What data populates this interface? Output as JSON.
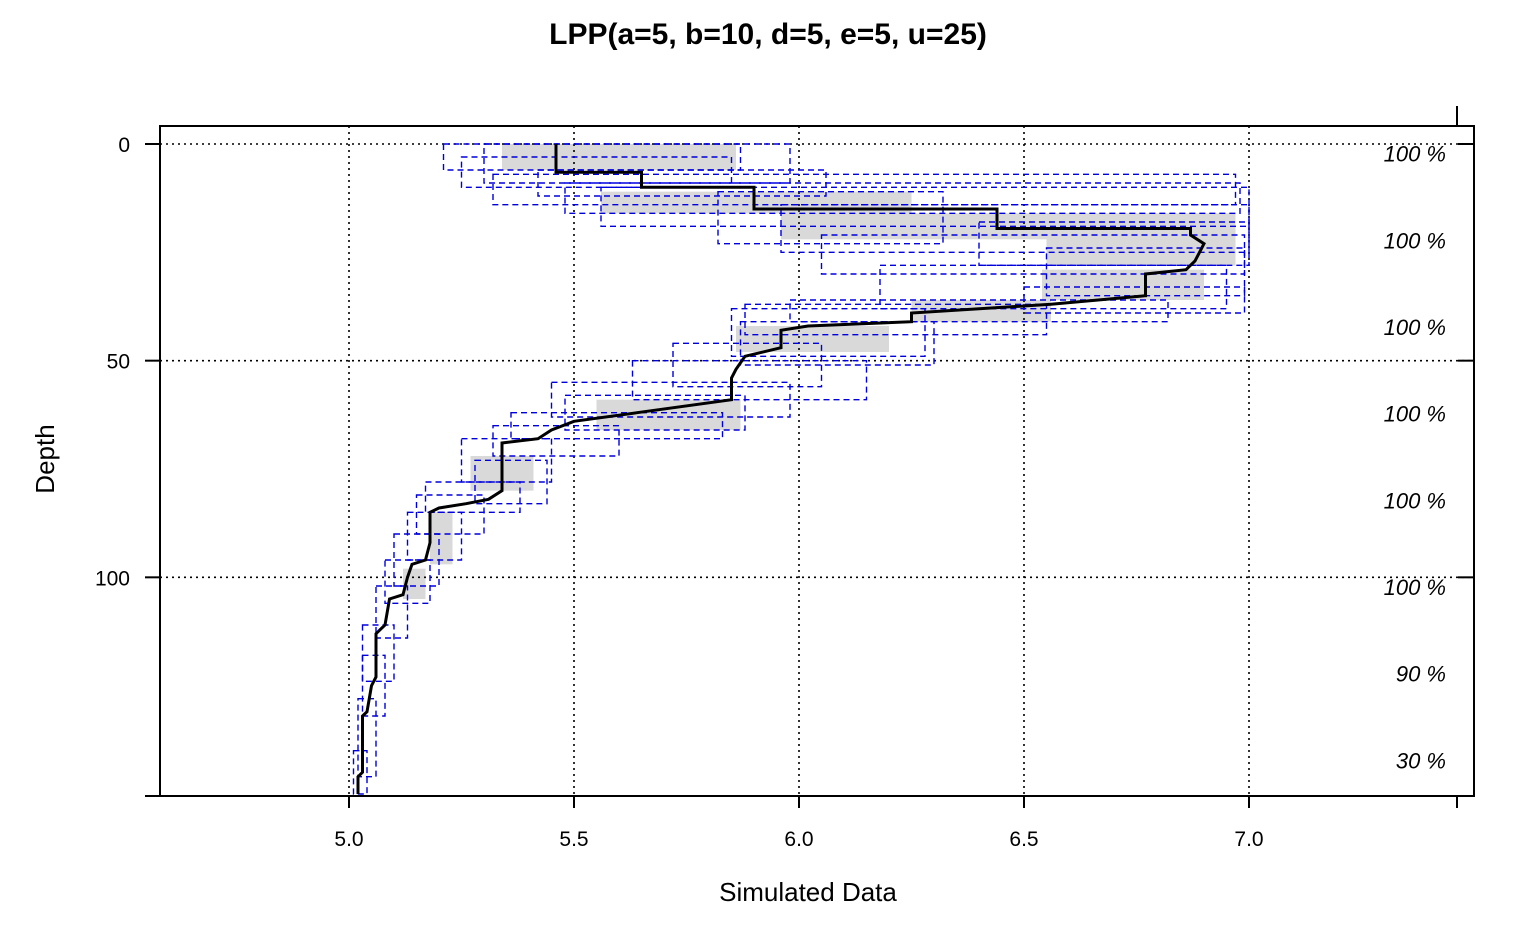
{
  "chart_data": {
    "type": "line",
    "title": "LPP(a=5, b=10, d=5, e=5, u=25)",
    "xlabel": "Simulated Data",
    "ylabel": "Depth",
    "xlim": [
      4.58,
      7.5
    ],
    "ylim": [
      0,
      150
    ],
    "y_reversed": true,
    "grid": true,
    "x_ticks": [
      5.0,
      5.5,
      6.0,
      6.5,
      7.0
    ],
    "x_tick_labels": [
      "5.0",
      "5.5",
      "6.0",
      "6.5",
      "7.0"
    ],
    "y_ticks": [
      0,
      50,
      100
    ],
    "y_tick_labels": [
      "0",
      "50",
      "100"
    ],
    "coverage_labels": [
      {
        "depth": 2,
        "label": "100 %"
      },
      {
        "depth": 22,
        "label": "100 %"
      },
      {
        "depth": 42,
        "label": "100 %"
      },
      {
        "depth": 62,
        "label": "100 %"
      },
      {
        "depth": 82,
        "label": "100 %"
      },
      {
        "depth": 102,
        "label": "100 %"
      },
      {
        "depth": 122,
        "label": "90 %"
      },
      {
        "depth": 142,
        "label": "30 %"
      }
    ],
    "profile": {
      "x": [
        5.46,
        5.46,
        5.65,
        5.65,
        5.9,
        5.9,
        6.44,
        6.44,
        6.87,
        6.87,
        6.9,
        6.88,
        6.86,
        6.77,
        6.77,
        6.56,
        6.25,
        6.25,
        6.02,
        5.96,
        5.96,
        5.88,
        5.86,
        5.85,
        5.85,
        5.64,
        5.5,
        5.45,
        5.42,
        5.34,
        5.34,
        5.31,
        5.26,
        5.2,
        5.18,
        5.18,
        5.17,
        5.14,
        5.13,
        5.12,
        5.09,
        5.08,
        5.07,
        5.06,
        5.06,
        5.05,
        5.04,
        5.03,
        5.03,
        5.03,
        5.02,
        5.02
      ],
      "depth": [
        0,
        6.5,
        6.5,
        10,
        10,
        15,
        15,
        19.5,
        19.5,
        21,
        23,
        27,
        29,
        30,
        35,
        37,
        39,
        41,
        42,
        43,
        47,
        49,
        52,
        54,
        59,
        62,
        64,
        66,
        68,
        69,
        80,
        82,
        83,
        84,
        85,
        92,
        96,
        97,
        100,
        104,
        105,
        111,
        112,
        113,
        123,
        125,
        131,
        132,
        141,
        145,
        146,
        150
      ]
    },
    "gray_band_boxes": [
      {
        "x1": 5.34,
        "x2": 5.86,
        "d1": 0,
        "d2": 6
      },
      {
        "x1": 5.56,
        "x2": 6.25,
        "d1": 11,
        "d2": 16
      },
      {
        "x1": 5.96,
        "x2": 6.6,
        "d1": 16,
        "d2": 22
      },
      {
        "x1": 6.55,
        "x2": 6.97,
        "d1": 16,
        "d2": 28
      },
      {
        "x1": 6.75,
        "x2": 6.97,
        "d1": 22,
        "d2": 28
      },
      {
        "x1": 6.54,
        "x2": 6.9,
        "d1": 29,
        "d2": 36
      },
      {
        "x1": 6.25,
        "x2": 6.56,
        "d1": 36,
        "d2": 41
      },
      {
        "x1": 5.86,
        "x2": 6.2,
        "d1": 42,
        "d2": 48
      },
      {
        "x1": 5.55,
        "x2": 5.87,
        "d1": 59,
        "d2": 66
      },
      {
        "x1": 5.27,
        "x2": 5.41,
        "d1": 72,
        "d2": 80
      },
      {
        "x1": 5.18,
        "x2": 5.23,
        "d1": 85,
        "d2": 97
      },
      {
        "x1": 5.12,
        "x2": 5.17,
        "d1": 98,
        "d2": 105
      }
    ],
    "interval_boxes": [
      {
        "x1": 5.21,
        "x2": 5.87,
        "d1": 0,
        "d2": 6
      },
      {
        "x1": 5.3,
        "x2": 5.98,
        "d1": 0,
        "d2": 9
      },
      {
        "x1": 5.25,
        "x2": 5.85,
        "d1": 3,
        "d2": 10
      },
      {
        "x1": 5.42,
        "x2": 6.06,
        "d1": 6,
        "d2": 12
      },
      {
        "x1": 5.32,
        "x2": 6.97,
        "d1": 7,
        "d2": 14
      },
      {
        "x1": 5.48,
        "x2": 6.98,
        "d1": 9,
        "d2": 16
      },
      {
        "x1": 5.56,
        "x2": 7.0,
        "d1": 10,
        "d2": 19
      },
      {
        "x1": 5.82,
        "x2": 6.32,
        "d1": 11,
        "d2": 23
      },
      {
        "x1": 5.96,
        "x2": 7.0,
        "d1": 14,
        "d2": 25
      },
      {
        "x1": 6.4,
        "x2": 7.0,
        "d1": 18,
        "d2": 28
      },
      {
        "x1": 6.05,
        "x2": 6.99,
        "d1": 21,
        "d2": 30
      },
      {
        "x1": 6.55,
        "x2": 6.99,
        "d1": 24,
        "d2": 35
      },
      {
        "x1": 6.18,
        "x2": 6.95,
        "d1": 28,
        "d2": 38
      },
      {
        "x1": 6.5,
        "x2": 6.99,
        "d1": 33,
        "d2": 39
      },
      {
        "x1": 5.98,
        "x2": 6.82,
        "d1": 36,
        "d2": 41
      },
      {
        "x1": 5.88,
        "x2": 6.55,
        "d1": 37,
        "d2": 44
      },
      {
        "x1": 5.85,
        "x2": 6.28,
        "d1": 38,
        "d2": 49
      },
      {
        "x1": 5.87,
        "x2": 6.3,
        "d1": 41,
        "d2": 51
      },
      {
        "x1": 5.72,
        "x2": 6.05,
        "d1": 46,
        "d2": 56
      },
      {
        "x1": 5.63,
        "x2": 6.15,
        "d1": 50,
        "d2": 59
      },
      {
        "x1": 5.45,
        "x2": 5.98,
        "d1": 55,
        "d2": 63
      },
      {
        "x1": 5.48,
        "x2": 5.88,
        "d1": 58,
        "d2": 66
      },
      {
        "x1": 5.36,
        "x2": 5.83,
        "d1": 62,
        "d2": 68
      },
      {
        "x1": 5.32,
        "x2": 5.6,
        "d1": 65,
        "d2": 72
      },
      {
        "x1": 5.25,
        "x2": 5.45,
        "d1": 68,
        "d2": 78
      },
      {
        "x1": 5.28,
        "x2": 5.44,
        "d1": 73,
        "d2": 83
      },
      {
        "x1": 5.17,
        "x2": 5.38,
        "d1": 78,
        "d2": 85
      },
      {
        "x1": 5.15,
        "x2": 5.3,
        "d1": 81,
        "d2": 90
      },
      {
        "x1": 5.13,
        "x2": 5.25,
        "d1": 85,
        "d2": 96
      },
      {
        "x1": 5.1,
        "x2": 5.2,
        "d1": 90,
        "d2": 102
      },
      {
        "x1": 5.08,
        "x2": 5.18,
        "d1": 96,
        "d2": 106
      },
      {
        "x1": 5.06,
        "x2": 5.13,
        "d1": 102,
        "d2": 114
      },
      {
        "x1": 5.03,
        "x2": 5.1,
        "d1": 111,
        "d2": 124
      },
      {
        "x1": 5.03,
        "x2": 5.08,
        "d1": 118,
        "d2": 132
      },
      {
        "x1": 5.02,
        "x2": 5.06,
        "d1": 128,
        "d2": 146
      },
      {
        "x1": 5.01,
        "x2": 5.04,
        "d1": 140,
        "d2": 150
      }
    ],
    "colors": {
      "profile": "#000000",
      "interval": "#0000dd",
      "band": "#d9d9d9",
      "grid": "#000000"
    }
  }
}
